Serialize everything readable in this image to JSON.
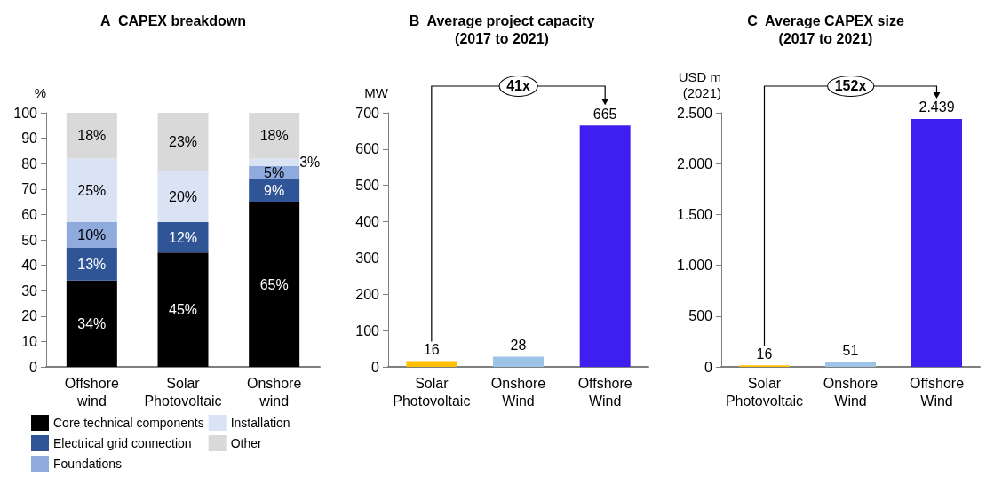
{
  "chart_data": [
    {
      "type": "bar",
      "title": "A  CAPEX breakdown",
      "ylabel": "%",
      "stacked": true,
      "categories": [
        "Offshore\nwind",
        "Solar\nPhotovoltaic",
        "Onshore\nwind"
      ],
      "ylim": [
        0,
        100
      ],
      "yticks": [
        0,
        10,
        20,
        30,
        40,
        50,
        60,
        70,
        80,
        90,
        100
      ],
      "legend": "bottom",
      "grid": false,
      "series": [
        {
          "name": "Core technical components",
          "color": "#000000",
          "values": [
            34,
            45,
            65
          ],
          "value_labels": [
            "34%",
            "45%",
            "65%"
          ]
        },
        {
          "name": "Electrical grid connection",
          "color": "#2f5597",
          "values": [
            13,
            12,
            9
          ],
          "value_labels": [
            "13%",
            "12%",
            "9%"
          ]
        },
        {
          "name": "Foundations",
          "color": "#8faadc",
          "values": [
            10,
            0,
            5
          ],
          "value_labels": [
            "10%",
            null,
            "5%"
          ]
        },
        {
          "name": "Installation",
          "color": "#dae3f3",
          "values": [
            25,
            20,
            3
          ],
          "value_labels": [
            "25%",
            "20%",
            "3%"
          ]
        },
        {
          "name": "Other",
          "color": "#d9d9d9",
          "values": [
            18,
            23,
            18
          ],
          "value_labels": [
            "18%",
            "23%",
            "18%"
          ]
        }
      ]
    },
    {
      "type": "bar",
      "title": "B  Average project capacity\n(2017 to 2021)",
      "ylabel": "MW",
      "categories": [
        "Solar\nPhotovoltaic",
        "Onshore\nWind",
        "Offshore\nWind"
      ],
      "values": [
        16,
        28,
        665
      ],
      "colors": [
        "#ffc000",
        "#9dc3e6",
        "#3f1fef"
      ],
      "data_labels": true,
      "ylim": [
        0,
        700
      ],
      "yticks": [
        0,
        100,
        200,
        300,
        400,
        500,
        600,
        700
      ],
      "grid": false,
      "annotations": [
        "41x"
      ]
    },
    {
      "type": "bar",
      "title": "C  Average CAPEX size\n(2017 to 2021)",
      "ylabel": "USD m\n(2021)",
      "categories": [
        "Solar\nPhotovoltaic",
        "Onshore\nWind",
        "Offshore\nWind"
      ],
      "values": [
        16,
        51,
        2439
      ],
      "value_labels": [
        "16",
        "51",
        "2.439"
      ],
      "colors": [
        "#ffc000",
        "#9dc3e6",
        "#3f1fef"
      ],
      "ylim": [
        0,
        2500
      ],
      "yticks": [
        0,
        500,
        {
          "value": 1000,
          "label": "1.000"
        },
        {
          "value": 1500,
          "label": "1.500"
        },
        {
          "value": 2000,
          "label": "2.000"
        },
        {
          "value": 2500,
          "label": "2.500"
        }
      ],
      "grid": false,
      "annotations": [
        "152x"
      ]
    }
  ]
}
